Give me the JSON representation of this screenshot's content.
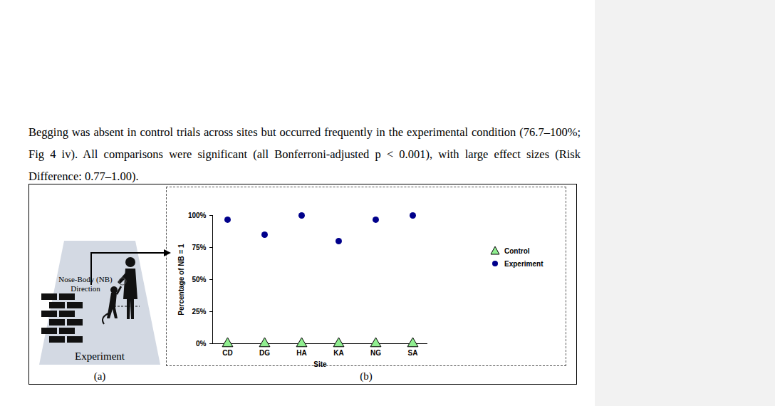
{
  "paragraph": "Begging was absent in control trials across sites but occurred frequently in the experimental condition (76.7–100%; Fig 4 iv). All comparisons were significant (all Bonferroni-adjusted p < 0.001), with large effect sizes (Risk Difference: 0.77–1.00).",
  "figure": {
    "panel_a": {
      "letter": "(a)",
      "label": "Nose-Body (NB) Direction",
      "condition": "Experiment"
    },
    "panel_b": {
      "letter": "(b)"
    }
  },
  "chart_data": {
    "type": "scatter",
    "x_label": "Site",
    "y_label": "Percentage of NB = 1",
    "categories": [
      "CD",
      "DG",
      "HA",
      "KA",
      "NG",
      "SA"
    ],
    "series": [
      {
        "name": "Control",
        "color": "#90ee90",
        "marker": "triangle",
        "values": [
          0,
          0,
          0,
          0,
          0,
          0
        ]
      },
      {
        "name": "Experiment",
        "color": "#00008b",
        "marker": "circle",
        "values": [
          96.7,
          85,
          100,
          80,
          96.7,
          100
        ]
      }
    ],
    "ylim": [
      0,
      100
    ],
    "yticks": [
      {
        "value": 0,
        "label": "0%"
      },
      {
        "value": 25,
        "label": "25%"
      },
      {
        "value": 50,
        "label": "50%"
      },
      {
        "value": 75,
        "label": "75%"
      },
      {
        "value": 100,
        "label": "100%"
      }
    ],
    "grid": false,
    "legend": "right"
  }
}
